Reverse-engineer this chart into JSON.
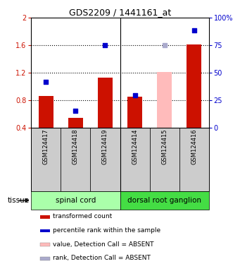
{
  "title": "GDS2209 / 1441161_at",
  "samples": [
    "GSM124417",
    "GSM124418",
    "GSM124419",
    "GSM124414",
    "GSM124415",
    "GSM124416"
  ],
  "bar_values": [
    0.86,
    0.54,
    1.13,
    0.855,
    null,
    1.61
  ],
  "bar_absent_values": [
    null,
    null,
    null,
    null,
    1.21,
    null
  ],
  "dot_values_left": [
    1.07,
    0.65,
    1.6,
    0.87,
    null,
    1.82
  ],
  "dot_absent_values_left": [
    null,
    null,
    null,
    null,
    1.6,
    null
  ],
  "bar_color": "#cc1100",
  "bar_absent_color": "#ffbbbb",
  "dot_color": "#0000cc",
  "dot_absent_color": "#aaaacc",
  "ylim_left": [
    0.4,
    2.0
  ],
  "ylim_right": [
    0,
    100
  ],
  "yticks_left": [
    0.4,
    0.8,
    1.2,
    1.6,
    2.0
  ],
  "ytick_labels_left": [
    "0.4",
    "0.8",
    "1.2",
    "1.6",
    "2"
  ],
  "yticks_right": [
    0,
    25,
    50,
    75,
    100
  ],
  "ytick_labels_right": [
    "0",
    "25",
    "50",
    "75",
    "100%"
  ],
  "tissue_groups": [
    {
      "label": "spinal cord",
      "start": 0,
      "end": 3,
      "color": "#aaffaa"
    },
    {
      "label": "dorsal root ganglion",
      "start": 3,
      "end": 6,
      "color": "#44dd44"
    }
  ],
  "tissue_label": "tissue",
  "legend_items": [
    {
      "label": "transformed count",
      "color": "#cc1100"
    },
    {
      "label": "percentile rank within the sample",
      "color": "#0000cc"
    },
    {
      "label": "value, Detection Call = ABSENT",
      "color": "#ffbbbb"
    },
    {
      "label": "rank, Detection Call = ABSENT",
      "color": "#aaaacc"
    }
  ],
  "grid_yticks": [
    0.8,
    1.2,
    1.6
  ],
  "bar_width": 0.5,
  "dot_size": 22,
  "n_samples": 6,
  "figwidth": 3.41,
  "figheight": 3.84,
  "dpi": 100
}
